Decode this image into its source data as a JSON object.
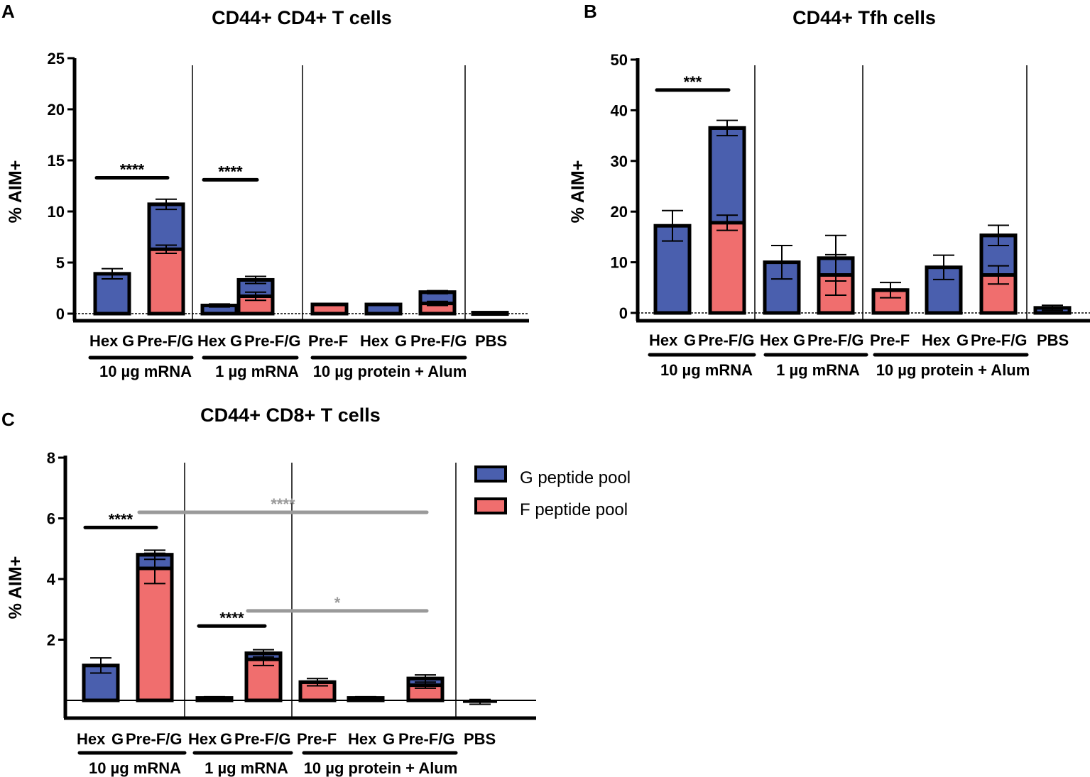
{
  "figure": {
    "colors": {
      "g_pool": "#4a5fae",
      "f_pool": "#f06e6e",
      "axis": "#000000",
      "sig_gray": "#9a9a9a"
    },
    "legend": {
      "items": [
        {
          "key": "g",
          "label": "G peptide pool"
        },
        {
          "key": "f",
          "label": "F peptide pool"
        }
      ]
    }
  },
  "chart_data": [
    {
      "panel": "A",
      "type": "bar",
      "stacked": true,
      "title": "CD44+ CD4+ T cells",
      "ylabel": "% AIM+",
      "ylim": [
        0,
        25
      ],
      "yticks": [
        0,
        5,
        10,
        15,
        20,
        25
      ],
      "categories": [
        "Hex",
        "G",
        "Pre-F/G",
        "Hex",
        "G",
        "Pre-F/G",
        "Pre-F",
        "Hex",
        "G",
        "Pre-F/G",
        "PBS"
      ],
      "groups": [
        {
          "label": "10 µg mRNA",
          "categories": [
            "Hex",
            "G",
            "Pre-F/G"
          ]
        },
        {
          "label": "1 µg mRNA",
          "categories": [
            "Hex",
            "G",
            "Pre-F/G"
          ]
        },
        {
          "label": "10 µg protein + Alum",
          "categories": [
            "Pre-F",
            "Hex",
            "G",
            "Pre-F/G"
          ]
        },
        {
          "label": "",
          "categories": [
            "PBS"
          ]
        }
      ],
      "bars": [
        {
          "position": 1,
          "f": 0.0,
          "g": 3.9,
          "g_err": 0.5
        },
        {
          "position": 3,
          "f": 6.3,
          "f_err": 0.4,
          "g": 10.7,
          "g_err": 0.5
        },
        {
          "position": 4,
          "f": 0.0,
          "g": 0.8,
          "g_err": 0.15
        },
        {
          "position": 6,
          "f": 1.7,
          "f_err": 0.4,
          "g": 3.3,
          "g_err": 0.35
        },
        {
          "position": 7,
          "f": 0.9,
          "f_err": 0.1,
          "g": 0.9
        },
        {
          "position": 8,
          "f": 0.0,
          "g": 0.9,
          "g_err": 0.1
        },
        {
          "position": 10,
          "f": 1.0,
          "f_err": 0.2,
          "g": 2.1,
          "g_err": 0.15
        },
        {
          "position": 11,
          "f": 0.0,
          "g": 0.1,
          "g_err": 0.05
        }
      ],
      "significance": [
        {
          "label": "****",
          "from": 1,
          "to": 3,
          "y": 13.3,
          "color": "black"
        },
        {
          "label": "****",
          "from": 4,
          "to": 6,
          "y": 13.1,
          "color": "black"
        }
      ]
    },
    {
      "panel": "B",
      "type": "bar",
      "stacked": true,
      "title": "CD44+ Tfh cells",
      "ylabel": "% AIM+",
      "ylim": [
        0,
        50
      ],
      "yticks": [
        0,
        10,
        20,
        30,
        40,
        50
      ],
      "categories": [
        "Hex",
        "G",
        "Pre-F/G",
        "Hex",
        "G",
        "Pre-F/G",
        "Pre-F",
        "Hex",
        "G",
        "Pre-F/G",
        "PBS"
      ],
      "groups": [
        {
          "label": "10 µg mRNA",
          "categories": [
            "Hex",
            "G",
            "Pre-F/G"
          ]
        },
        {
          "label": "1 µg mRNA",
          "categories": [
            "Hex",
            "G",
            "Pre-F/G"
          ]
        },
        {
          "label": "10 µg protein + Alum",
          "categories": [
            "Pre-F",
            "Hex",
            "G",
            "Pre-F/G"
          ]
        },
        {
          "label": "",
          "categories": [
            "PBS"
          ]
        }
      ],
      "bars": [
        {
          "position": 1,
          "f": 0.0,
          "g": 17.2,
          "g_err": 3.0
        },
        {
          "position": 3,
          "f": 17.8,
          "f_err": 1.5,
          "g": 36.5,
          "g_err": 1.5
        },
        {
          "position": 4,
          "f": 0.0,
          "g": 10.0,
          "g_err": 3.3
        },
        {
          "position": 6,
          "f": 7.5,
          "f_err": 4.0,
          "g": 10.8,
          "g_err": 4.5
        },
        {
          "position": 7,
          "f": 4.5,
          "f_err": 1.5,
          "g": 4.5
        },
        {
          "position": 8,
          "f": 0.0,
          "g": 9.0,
          "g_err": 2.4
        },
        {
          "position": 10,
          "f": 7.5,
          "f_err": 1.8,
          "g": 15.3,
          "g_err": 2.0
        },
        {
          "position": 11,
          "f": 0.0,
          "g": 1.0,
          "g_err": 0.5
        }
      ],
      "significance": [
        {
          "label": "***",
          "from": 1,
          "to": 3,
          "y": 44.0,
          "color": "black"
        }
      ]
    },
    {
      "panel": "C",
      "type": "bar",
      "stacked": true,
      "title": "CD44+ CD8+ T cells",
      "ylabel": "% AIM+",
      "ylim": [
        -0.5,
        8
      ],
      "yticks": [
        2,
        4,
        6,
        8
      ],
      "categories": [
        "Hex",
        "G",
        "Pre-F/G",
        "Hex",
        "G",
        "Pre-F/G",
        "Pre-F",
        "Hex",
        "G",
        "Pre-F/G",
        "PBS"
      ],
      "groups": [
        {
          "label": "10 µg mRNA",
          "categories": [
            "Hex",
            "G",
            "Pre-F/G"
          ]
        },
        {
          "label": "1 µg mRNA",
          "categories": [
            "Hex",
            "G",
            "Pre-F/G"
          ]
        },
        {
          "label": "10 µg protein + Alum",
          "categories": [
            "Pre-F",
            "Hex",
            "G",
            "Pre-F/G"
          ]
        },
        {
          "label": "",
          "categories": [
            "PBS"
          ]
        }
      ],
      "bars": [
        {
          "position": 1,
          "f": 0.0,
          "g": 1.15,
          "g_err": 0.25
        },
        {
          "position": 3,
          "f": 4.35,
          "f_err": 0.5,
          "g": 4.8,
          "g_err": 0.15
        },
        {
          "position": 4,
          "f": 0.0,
          "g": 0.08,
          "g_err": 0.04
        },
        {
          "position": 6,
          "f": 1.35,
          "f_err": 0.2,
          "g": 1.55,
          "g_err": 0.12
        },
        {
          "position": 7,
          "f": 0.6,
          "f_err": 0.12,
          "g": 0.6
        },
        {
          "position": 8,
          "f": 0.0,
          "g": 0.08,
          "g_err": 0.04
        },
        {
          "position": 10,
          "f": 0.5,
          "f_err": 0.1,
          "g": 0.72,
          "g_err": 0.12
        },
        {
          "position": 11,
          "f": 0.0,
          "g": -0.05,
          "g_err": 0.08
        }
      ],
      "significance": [
        {
          "label": "****",
          "from": 1,
          "to": 3,
          "y": 5.7,
          "color": "black"
        },
        {
          "label": "****",
          "from": 4,
          "to": 6,
          "y": 2.45,
          "color": "black"
        },
        {
          "label": "****",
          "from": 3,
          "to": 10,
          "y": 6.2,
          "color": "gray"
        },
        {
          "label": "*",
          "from": 6,
          "to": 10,
          "y": 2.95,
          "color": "gray"
        }
      ]
    }
  ]
}
